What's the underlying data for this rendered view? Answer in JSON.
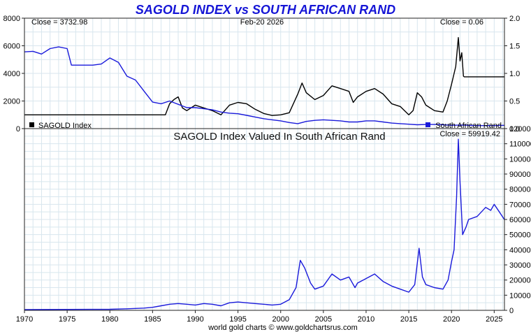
{
  "title": "SAGOLD INDEX vs SOUTH AFRICAN RAND",
  "footer": "world gold charts © www.goldchartsrus.com",
  "top_panel": {
    "close_left": "Close = 3732.98",
    "date": "Feb-20  2026",
    "close_right": "Close = 0.06",
    "legend_left": "SAGOLD Index",
    "legend_right": "South African Rand",
    "legend_left_color": "#000000",
    "legend_right_color": "#1a1adb"
  },
  "bottom_panel": {
    "title": "SAGOLD Index Valued In South African Rand",
    "close": "Close = 59919.42",
    "line_color": "#1a1adb"
  },
  "chart_data": [
    {
      "type": "line",
      "title": "SAGOLD INDEX vs SOUTH AFRICAN RAND",
      "xlim": [
        1970,
        2026.2
      ],
      "x_ticks": [
        1970,
        1975,
        1980,
        1985,
        1990,
        1995,
        2000,
        2005,
        2010,
        2015,
        2020,
        2025
      ],
      "y_left": {
        "lim": [
          0,
          8000
        ],
        "ticks": [
          0,
          2000,
          4000,
          6000,
          8000
        ]
      },
      "y_right": {
        "lim": [
          0,
          2.0
        ],
        "ticks": [
          "0.0",
          "0.5",
          "1.0",
          "1.5",
          "2.0"
        ]
      },
      "grid": true,
      "series": [
        {
          "name": "SAGOLD Index",
          "axis": "left",
          "color": "#000000",
          "x": [
            1970,
            1986.5,
            1987.0,
            1987.5,
            1988.0,
            1988.5,
            1989.0,
            1990.0,
            1991.0,
            1992.0,
            1993.0,
            1994.0,
            1995.0,
            1996.0,
            1997.0,
            1998.0,
            1999.0,
            2000.0,
            2001.0,
            2002.0,
            2002.5,
            2003.0,
            2004.0,
            2005.0,
            2006.0,
            2007.0,
            2008.0,
            2008.5,
            2009.0,
            2010.0,
            2011.0,
            2012.0,
            2013.0,
            2014.0,
            2015.0,
            2015.5,
            2016.0,
            2016.5,
            2017.0,
            2018.0,
            2019.0,
            2019.5,
            2020.0,
            2020.5,
            2020.8,
            2021.0,
            2021.2,
            2021.4,
            2021.5,
            2026.2
          ],
          "y": [
            1000,
            1000,
            1800,
            2100,
            2300,
            1500,
            1300,
            1700,
            1500,
            1300,
            1000,
            1700,
            1900,
            1800,
            1400,
            1100,
            950,
            1000,
            1150,
            2500,
            3300,
            2600,
            2100,
            2400,
            3100,
            2900,
            2700,
            1900,
            2300,
            2700,
            2900,
            2500,
            1800,
            1600,
            1000,
            1300,
            2600,
            2300,
            1700,
            1300,
            1200,
            2000,
            3200,
            4500,
            6600,
            4900,
            5500,
            3800,
            3750,
            3750
          ]
        },
        {
          "name": "South African Rand",
          "axis": "right",
          "color": "#1a1adb",
          "x": [
            1970,
            1971,
            1972,
            1973,
            1974,
            1975,
            1975.5,
            1976,
            1977,
            1978,
            1979,
            1980,
            1981,
            1982,
            1983,
            1984,
            1985,
            1986,
            1987,
            1988,
            1989,
            1990,
            1991,
            1992,
            1993,
            1994,
            1995,
            1996,
            1997,
            1998,
            1999,
            2000,
            2001,
            2002,
            2003,
            2004,
            2005,
            2006,
            2007,
            2008,
            2009,
            2010,
            2011,
            2012,
            2013,
            2014,
            2015,
            2016,
            2017,
            2018,
            2019,
            2020,
            2021,
            2022,
            2023,
            2024,
            2025,
            2026.2
          ],
          "y": [
            1.39,
            1.4,
            1.35,
            1.45,
            1.48,
            1.45,
            1.15,
            1.15,
            1.15,
            1.15,
            1.17,
            1.28,
            1.2,
            0.95,
            0.88,
            0.68,
            0.48,
            0.45,
            0.5,
            0.44,
            0.38,
            0.38,
            0.36,
            0.34,
            0.3,
            0.28,
            0.27,
            0.24,
            0.21,
            0.18,
            0.16,
            0.14,
            0.11,
            0.09,
            0.13,
            0.15,
            0.16,
            0.15,
            0.14,
            0.12,
            0.12,
            0.14,
            0.14,
            0.12,
            0.1,
            0.09,
            0.08,
            0.07,
            0.075,
            0.075,
            0.07,
            0.06,
            0.065,
            0.06,
            0.055,
            0.055,
            0.055,
            0.06
          ]
        }
      ]
    },
    {
      "type": "line",
      "title": "SAGOLD Index Valued In South African Rand",
      "xlim": [
        1970,
        2026.2
      ],
      "x_ticks": [
        1970,
        1975,
        1980,
        1985,
        1990,
        1995,
        2000,
        2005,
        2010,
        2015,
        2020,
        2025
      ],
      "y_right": {
        "lim": [
          0,
          120000
        ],
        "ticks": [
          0,
          10000,
          20000,
          30000,
          40000,
          50000,
          60000,
          70000,
          80000,
          90000,
          100000,
          110000,
          120000
        ]
      },
      "grid": true,
      "series": [
        {
          "name": "SAGOLD Index Valued In South African Rand",
          "color": "#1a1adb",
          "x": [
            1970,
            1975,
            1980,
            1982,
            1984,
            1985,
            1986,
            1987,
            1988,
            1989,
            1990,
            1991,
            1992,
            1993,
            1994,
            1995,
            1996,
            1997,
            1998,
            1999,
            2000,
            2001,
            2001.8,
            2002.3,
            2002.8,
            2003.5,
            2004,
            2005,
            2006,
            2007,
            2008,
            2008.7,
            2009,
            2010,
            2011,
            2012,
            2013,
            2014,
            2015,
            2015.7,
            2016.2,
            2016.6,
            2017,
            2018,
            2019,
            2019.6,
            2020.0,
            2020.3,
            2020.6,
            2020.8,
            2021.0,
            2021.3,
            2021.7,
            2022,
            2023,
            2024,
            2024.6,
            2025,
            2025.6,
            2026.2
          ],
          "y": [
            500,
            600,
            700,
            1000,
            1500,
            2000,
            3000,
            4000,
            4500,
            4000,
            3500,
            4500,
            4000,
            3000,
            5000,
            5500,
            5000,
            4500,
            4000,
            3500,
            4000,
            7000,
            15000,
            33000,
            28000,
            18000,
            14000,
            16000,
            24000,
            20000,
            22000,
            15000,
            18000,
            21000,
            24000,
            19000,
            16000,
            14000,
            12000,
            17000,
            41000,
            22000,
            17000,
            15000,
            14000,
            20000,
            32000,
            40000,
            75000,
            113000,
            85000,
            50000,
            55000,
            60000,
            62000,
            68000,
            66000,
            70000,
            65000,
            59919
          ]
        }
      ]
    }
  ]
}
